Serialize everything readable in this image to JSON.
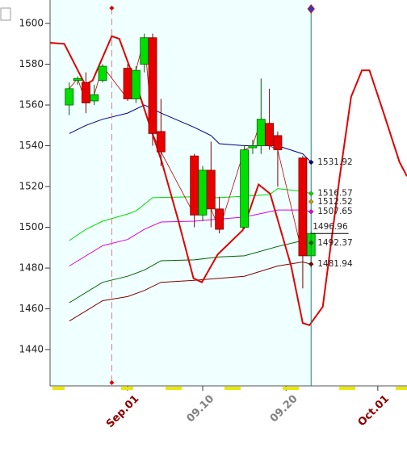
{
  "chart_data": {
    "type": "candlestick",
    "xlim": [
      -9.3,
      33.5
    ],
    "ylim": [
      1422.2,
      1611.5
    ],
    "yticks": [
      1440,
      1460,
      1480,
      1500,
      1520,
      1540,
      1560,
      1580,
      1600
    ],
    "xticks": [
      {
        "value": 0,
        "label": "Sep.01"
      },
      {
        "value": 9,
        "label": "09.10"
      },
      {
        "value": 19,
        "label": "09.20"
      },
      {
        "value": 30,
        "label": "Oct.01"
      }
    ],
    "xtick_colors": [
      "#8b0000",
      "#808080",
      "#808080",
      "#8b0000"
    ],
    "candles": {
      "x": [
        -7,
        -6,
        -5,
        -4,
        -3,
        0,
        1,
        2,
        3,
        4,
        8,
        9,
        10,
        11,
        14,
        15,
        16,
        17,
        18,
        21,
        22
      ],
      "open": [
        1560,
        1572,
        1571,
        1562,
        1572,
        1578,
        1563,
        1580,
        1593,
        1547,
        1535,
        1506,
        1528,
        1509,
        1500,
        1539,
        1540,
        1551,
        1545,
        1534,
        1486
      ],
      "high": [
        1571,
        1574,
        1576,
        1570,
        1580,
        1580,
        1579,
        1595,
        1595,
        1563,
        1536,
        1530,
        1542,
        1515,
        1540,
        1543,
        1573,
        1568,
        1547,
        1535,
        1498
      ],
      "low": [
        1555,
        1570,
        1556,
        1560,
        1571,
        1562,
        1561,
        1576,
        1540,
        1530,
        1500,
        1503,
        1500,
        1497,
        1499,
        1536,
        1536,
        1538,
        1520,
        1470,
        1480
      ],
      "close": [
        1568,
        1573,
        1561,
        1565,
        1579,
        1563,
        1577,
        1593,
        1546,
        1537,
        1506,
        1528,
        1509,
        1499,
        1538,
        1540,
        1553,
        1540,
        1538,
        1486,
        1497
      ],
      "up_color": "#00e000",
      "down_color": "#e80000",
      "close_line_color": "#cc0000"
    },
    "series": [
      {
        "color": "#000080",
        "x": [
          -7,
          -5,
          -3,
          0,
          2,
          4,
          8,
          10,
          11,
          14,
          17,
          18,
          21,
          22
        ],
        "values": [
          1546,
          1550,
          1553,
          1556,
          1560,
          1556,
          1549,
          1545,
          1541,
          1540,
          1540,
          1540,
          1536,
          1531.92
        ]
      },
      {
        "color": "#00dd00",
        "x": [
          -7,
          -5,
          -3,
          0,
          1,
          3,
          8,
          11,
          17,
          18,
          21,
          22
        ],
        "values": [
          1493.5,
          1499,
          1503,
          1506.5,
          1508,
          1514.5,
          1515,
          1514.5,
          1516,
          1519,
          1517.6,
          1516.57
        ]
      },
      {
        "color": "#c0a000",
        "x": [
          22
        ],
        "values": [
          1512.52
        ]
      },
      {
        "color": "#e000e0",
        "x": [
          -7,
          -3,
          0,
          2,
          4,
          8,
          11,
          14,
          18,
          21,
          22
        ],
        "values": [
          1481,
          1491,
          1494,
          1499,
          1502.6,
          1503,
          1504,
          1505,
          1508.5,
          1508.5,
          1507.65
        ]
      },
      {
        "color": "#006400",
        "x": [
          -7,
          -3,
          0,
          2,
          4,
          8,
          11,
          14,
          18,
          21,
          22
        ],
        "values": [
          1463,
          1473,
          1476,
          1479,
          1483.6,
          1484,
          1485.5,
          1486,
          1490.6,
          1493.5,
          1492.37
        ]
      },
      {
        "color": "#800000",
        "x": [
          -7,
          -3,
          0,
          2,
          4,
          8,
          11,
          14,
          18,
          21,
          22
        ],
        "values": [
          1454,
          1464,
          1466,
          1469,
          1473,
          1474,
          1475,
          1476,
          1481,
          1483,
          1481.94
        ]
      }
    ],
    "price_line": {
      "x": [
        22,
        26.5
      ],
      "value": 1496.96,
      "color": "#000000"
    },
    "cycle": {
      "color": "#e00000",
      "x": [
        -9.3,
        -7.6,
        -5.1,
        -4.2,
        -1.9,
        -1,
        1.2,
        4.1,
        6,
        7.9,
        8.9,
        10.8,
        13.8,
        15.7,
        17.1,
        19.6,
        21,
        21.8,
        23.4,
        25.4,
        26.8,
        28.1,
        29,
        30.7,
        32.6,
        33.5
      ],
      "values": [
        1590.5,
        1590,
        1570,
        1572,
        1593.7,
        1592.5,
        1568,
        1532,
        1504.5,
        1475,
        1473,
        1486.7,
        1498.6,
        1521,
        1516.4,
        1481,
        1453,
        1452,
        1461,
        1524,
        1564,
        1577,
        1577,
        1556,
        1532,
        1525
      ]
    }
  }
}
